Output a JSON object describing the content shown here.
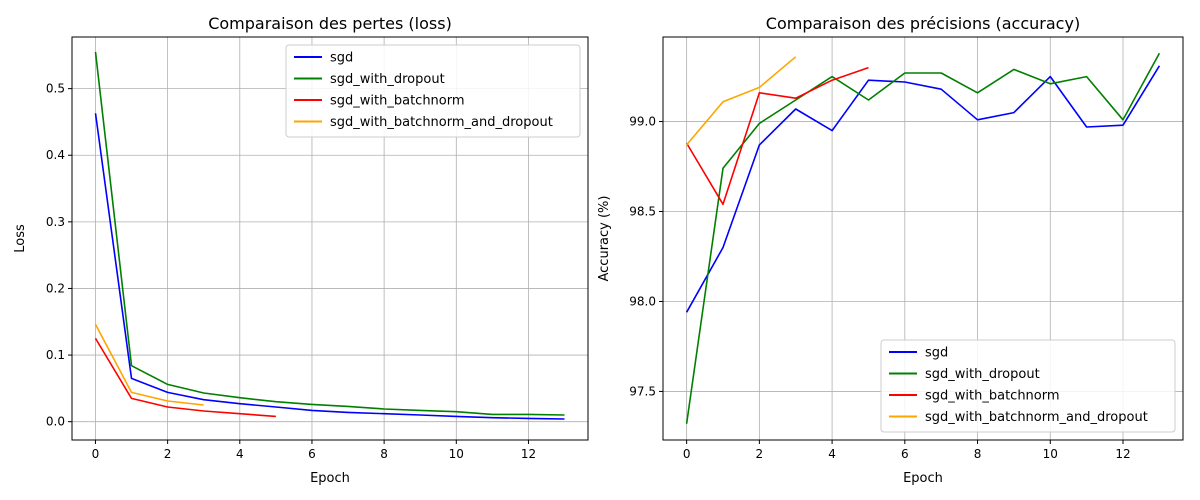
{
  "charts": [
    {
      "chart_data": {
        "type": "line",
        "title": "Comparaison des pertes (loss)",
        "xlabel": "Epoch",
        "ylabel": "Loss",
        "xlim": [
          -0.65,
          13.65
        ],
        "ylim": [
          -0.0275,
          0.5775
        ],
        "xticks": [
          0,
          2,
          4,
          6,
          8,
          10,
          12
        ],
        "yticks": [
          0.0,
          0.1,
          0.2,
          0.3,
          0.4,
          0.5
        ],
        "ytick_labels": [
          "0.0",
          "0.1",
          "0.2",
          "0.3",
          "0.4",
          "0.5"
        ],
        "grid": true,
        "legend_position": "top-right",
        "series": [
          {
            "name": "sgd",
            "color": "#0000ff",
            "x": [
              0,
              1,
              2,
              3,
              4,
              5,
              6,
              7,
              8,
              9,
              10,
              11,
              12,
              13
            ],
            "y": [
              0.463,
              0.065,
              0.044,
              0.033,
              0.027,
              0.022,
              0.017,
              0.014,
              0.012,
              0.01,
              0.008,
              0.006,
              0.005,
              0.004
            ]
          },
          {
            "name": "sgd_with_dropout",
            "color": "#008000",
            "x": [
              0,
              1,
              2,
              3,
              4,
              5,
              6,
              7,
              8,
              9,
              10,
              11,
              12,
              13
            ],
            "y": [
              0.555,
              0.084,
              0.056,
              0.043,
              0.036,
              0.03,
              0.026,
              0.023,
              0.019,
              0.017,
              0.015,
              0.011,
              0.011,
              0.01
            ]
          },
          {
            "name": "sgd_with_batchnorm",
            "color": "#ff0000",
            "x": [
              0,
              1,
              2,
              3,
              4,
              5
            ],
            "y": [
              0.125,
              0.035,
              0.022,
              0.016,
              0.012,
              0.008
            ]
          },
          {
            "name": "sgd_with_batchnorm_and_dropout",
            "color": "#ffa500",
            "x": [
              0,
              1,
              2,
              3
            ],
            "y": [
              0.146,
              0.044,
              0.031,
              0.025
            ]
          }
        ]
      }
    },
    {
      "chart_data": {
        "type": "line",
        "title": "Comparaison des précisions (accuracy)",
        "xlabel": "Epoch",
        "ylabel": "Accuracy (%)",
        "xlim": [
          -0.65,
          13.65
        ],
        "ylim": [
          97.23,
          99.47
        ],
        "xticks": [
          0,
          2,
          4,
          6,
          8,
          10,
          12
        ],
        "yticks": [
          97.5,
          98.0,
          98.5,
          99.0
        ],
        "ytick_labels": [
          "97.5",
          "98.0",
          "98.5",
          "99.0"
        ],
        "grid": true,
        "legend_position": "bottom-right",
        "series": [
          {
            "name": "sgd",
            "color": "#0000ff",
            "x": [
              0,
              1,
              2,
              3,
              4,
              5,
              6,
              7,
              8,
              9,
              10,
              11,
              12,
              13
            ],
            "y": [
              97.94,
              98.3,
              98.87,
              99.07,
              98.95,
              99.23,
              99.22,
              99.18,
              99.01,
              99.05,
              99.25,
              98.97,
              98.98,
              99.31
            ]
          },
          {
            "name": "sgd_with_dropout",
            "color": "#008000",
            "x": [
              0,
              1,
              2,
              3,
              4,
              5,
              6,
              7,
              8,
              9,
              10,
              11,
              12,
              13
            ],
            "y": [
              97.32,
              98.74,
              98.99,
              99.12,
              99.25,
              99.12,
              99.27,
              99.27,
              99.16,
              99.29,
              99.21,
              99.25,
              99.01,
              99.38
            ]
          },
          {
            "name": "sgd_with_batchnorm",
            "color": "#ff0000",
            "x": [
              0,
              1,
              2,
              3,
              4,
              5
            ],
            "y": [
              98.88,
              98.54,
              99.16,
              99.13,
              99.23,
              99.3
            ]
          },
          {
            "name": "sgd_with_batchnorm_and_dropout",
            "color": "#ffa500",
            "x": [
              0,
              1,
              2,
              3
            ],
            "y": [
              98.87,
              99.11,
              99.19,
              99.36
            ]
          }
        ]
      }
    }
  ]
}
